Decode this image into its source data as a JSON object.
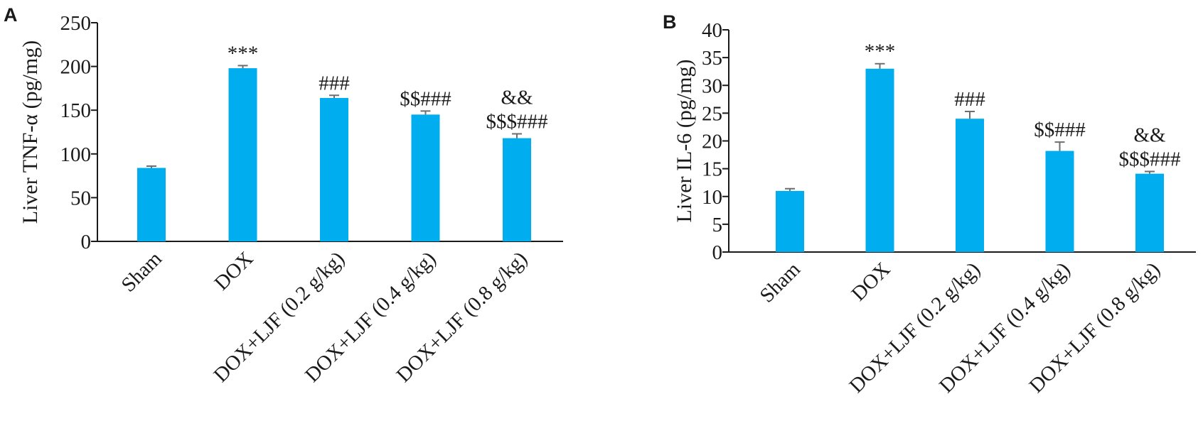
{
  "chart_data": [
    {
      "type": "bar",
      "panel": "A",
      "ylabel": "Liver TNF-α (pg/mg)",
      "ylim": [
        0,
        250
      ],
      "yticks": [
        "0",
        "50",
        "100",
        "150",
        "200",
        "250"
      ],
      "categories": [
        "Sham",
        "DOX",
        "DOX+LJF (0.2 g/kg)",
        "DOX+LJF (0.4 g/kg)",
        "DOX+LJF (0.8 g/kg)"
      ],
      "values": [
        84,
        198,
        164,
        145,
        118
      ],
      "errors": [
        2,
        3,
        3,
        4,
        5
      ],
      "annotations": [
        [],
        [
          "***"
        ],
        [
          "###"
        ],
        [
          "$$###"
        ],
        [
          "&&",
          "$$$###"
        ]
      ],
      "bar_color": "#00aeef",
      "grid": false
    },
    {
      "type": "bar",
      "panel": "B",
      "ylabel": "Liver IL-6 (pg/mg)",
      "ylim": [
        0,
        40
      ],
      "yticks": [
        "0",
        "5",
        "10",
        "15",
        "20",
        "25",
        "30",
        "35",
        "40"
      ],
      "categories": [
        "Sham",
        "DOX",
        "DOX+LJF (0.2 g/kg)",
        "DOX+LJF (0.4 g/kg)",
        "DOX+LJF (0.8 g/kg)"
      ],
      "values": [
        11,
        33,
        24,
        18.2,
        14.1
      ],
      "errors": [
        0.4,
        0.9,
        1.3,
        1.6,
        0.4
      ],
      "annotations": [
        [],
        [
          "***"
        ],
        [
          "###"
        ],
        [
          "$$###"
        ],
        [
          "&&",
          "$$$###"
        ]
      ],
      "bar_color": "#00aeef",
      "grid": false
    }
  ]
}
